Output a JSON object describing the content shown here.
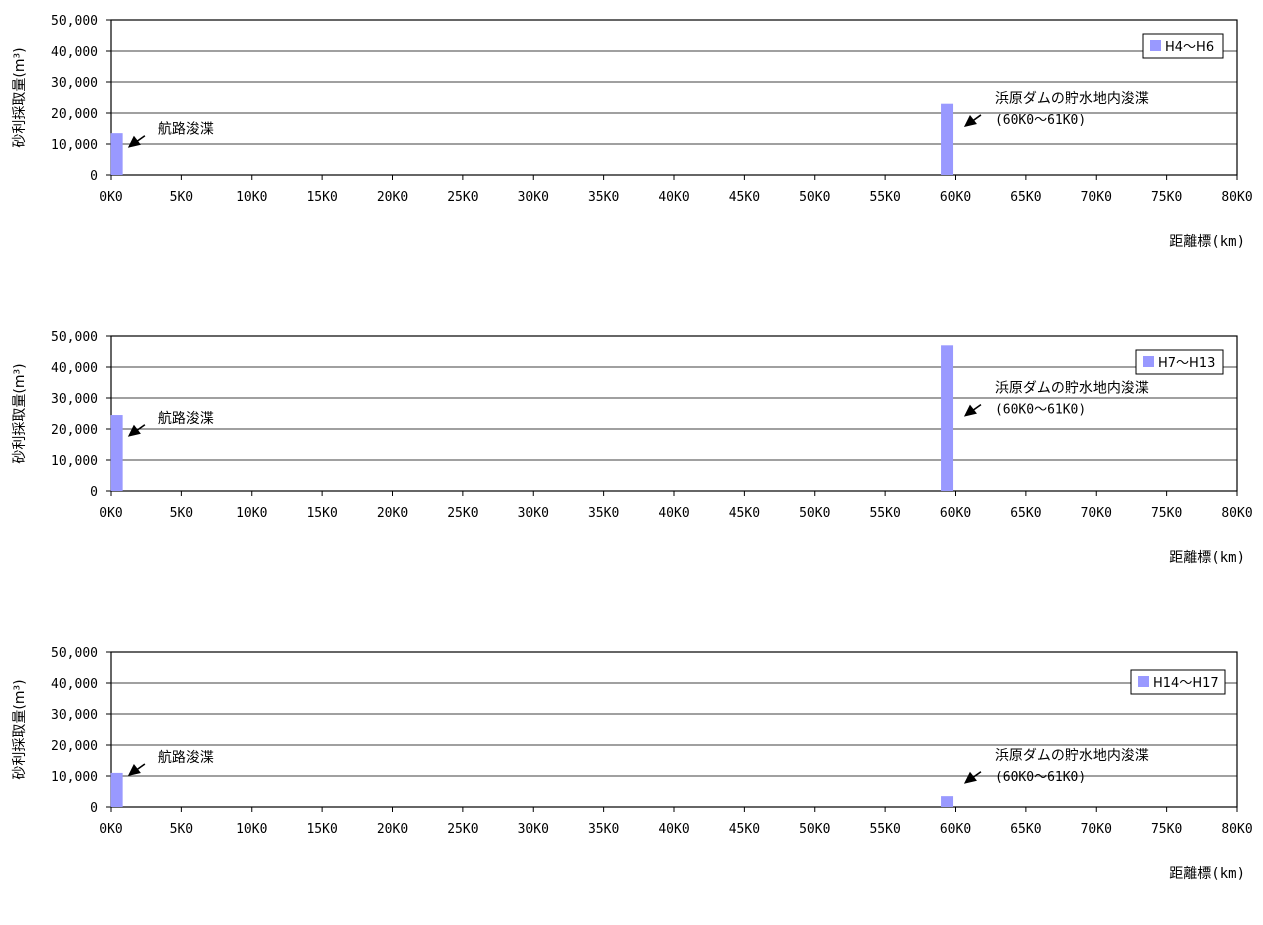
{
  "chart_data": [
    {
      "type": "bar",
      "series": [
        {
          "name": "H4～H6",
          "points": [
            {
              "x": 0.4,
              "y": 13500
            },
            {
              "x": 59.4,
              "y": 23000
            }
          ]
        }
      ],
      "xlim": [
        0,
        80
      ],
      "ylim": [
        0,
        50000
      ],
      "xticks": [
        "0K0",
        "5K0",
        "10K0",
        "15K0",
        "20K0",
        "25K0",
        "30K0",
        "35K0",
        "40K0",
        "45K0",
        "50K0",
        "55K0",
        "60K0",
        "65K0",
        "70K0",
        "75K0",
        "80K0"
      ],
      "yticks": [
        "0",
        "10,000",
        "20,000",
        "30,000",
        "40,000",
        "50,000"
      ],
      "ylabel": "砂利採取量(m³)",
      "xlabel": "距離標(km)",
      "annotations": [
        {
          "text": "航路浚渫",
          "sub": "",
          "target_x": 1.2,
          "target_y": 8800
        },
        {
          "text": "浜原ダムの貯水地内浚渫",
          "sub": "(60K0～61K0)",
          "target_x": 60.6,
          "target_y": 15500
        }
      ],
      "grid": "horizontal",
      "legend": "top-right",
      "color": "#9999ff"
    },
    {
      "type": "bar",
      "series": [
        {
          "name": "H7～H13",
          "points": [
            {
              "x": 0.4,
              "y": 24500
            },
            {
              "x": 59.4,
              "y": 47000
            }
          ]
        }
      ],
      "xlim": [
        0,
        80
      ],
      "ylim": [
        0,
        50000
      ],
      "xticks": [
        "0K0",
        "5K0",
        "10K0",
        "15K0",
        "20K0",
        "25K0",
        "30K0",
        "35K0",
        "40K0",
        "45K0",
        "50K0",
        "55K0",
        "60K0",
        "65K0",
        "70K0",
        "75K0",
        "80K0"
      ],
      "yticks": [
        "0",
        "10,000",
        "20,000",
        "30,000",
        "40,000",
        "50,000"
      ],
      "ylabel": "砂利採取量(m³)",
      "xlabel": "距離標(km)",
      "annotations": [
        {
          "text": "航路浚渫",
          "sub": "",
          "target_x": 1.2,
          "target_y": 17500
        },
        {
          "text": "浜原ダムの貯水地内浚渫",
          "sub": "(60K0～61K0)",
          "target_x": 60.6,
          "target_y": 24000
        }
      ],
      "grid": "horizontal",
      "legend": "top-right",
      "color": "#9999ff"
    },
    {
      "type": "bar",
      "series": [
        {
          "name": "H14～H17",
          "points": [
            {
              "x": 0.4,
              "y": 11000
            },
            {
              "x": 59.4,
              "y": 3500
            }
          ]
        }
      ],
      "xlim": [
        0,
        80
      ],
      "ylim": [
        0,
        50000
      ],
      "xticks": [
        "0K0",
        "5K0",
        "10K0",
        "15K0",
        "20K0",
        "25K0",
        "30K0",
        "35K0",
        "40K0",
        "45K0",
        "50K0",
        "55K0",
        "60K0",
        "65K0",
        "70K0",
        "75K0",
        "80K0"
      ],
      "yticks": [
        "0",
        "10,000",
        "20,000",
        "30,000",
        "40,000",
        "50,000"
      ],
      "ylabel": "砂利採取量(m³)",
      "xlabel": "距離標(km)",
      "annotations": [
        {
          "text": "航路浚渫",
          "sub": "",
          "target_x": 1.2,
          "target_y": 10000
        },
        {
          "text": "浜原ダムの貯水地内浚渫",
          "sub": "(60K0～61K0)",
          "target_x": 60.6,
          "target_y": 7500
        }
      ],
      "grid": "horizontal",
      "legend": "top-right",
      "color": "#9999ff"
    }
  ]
}
